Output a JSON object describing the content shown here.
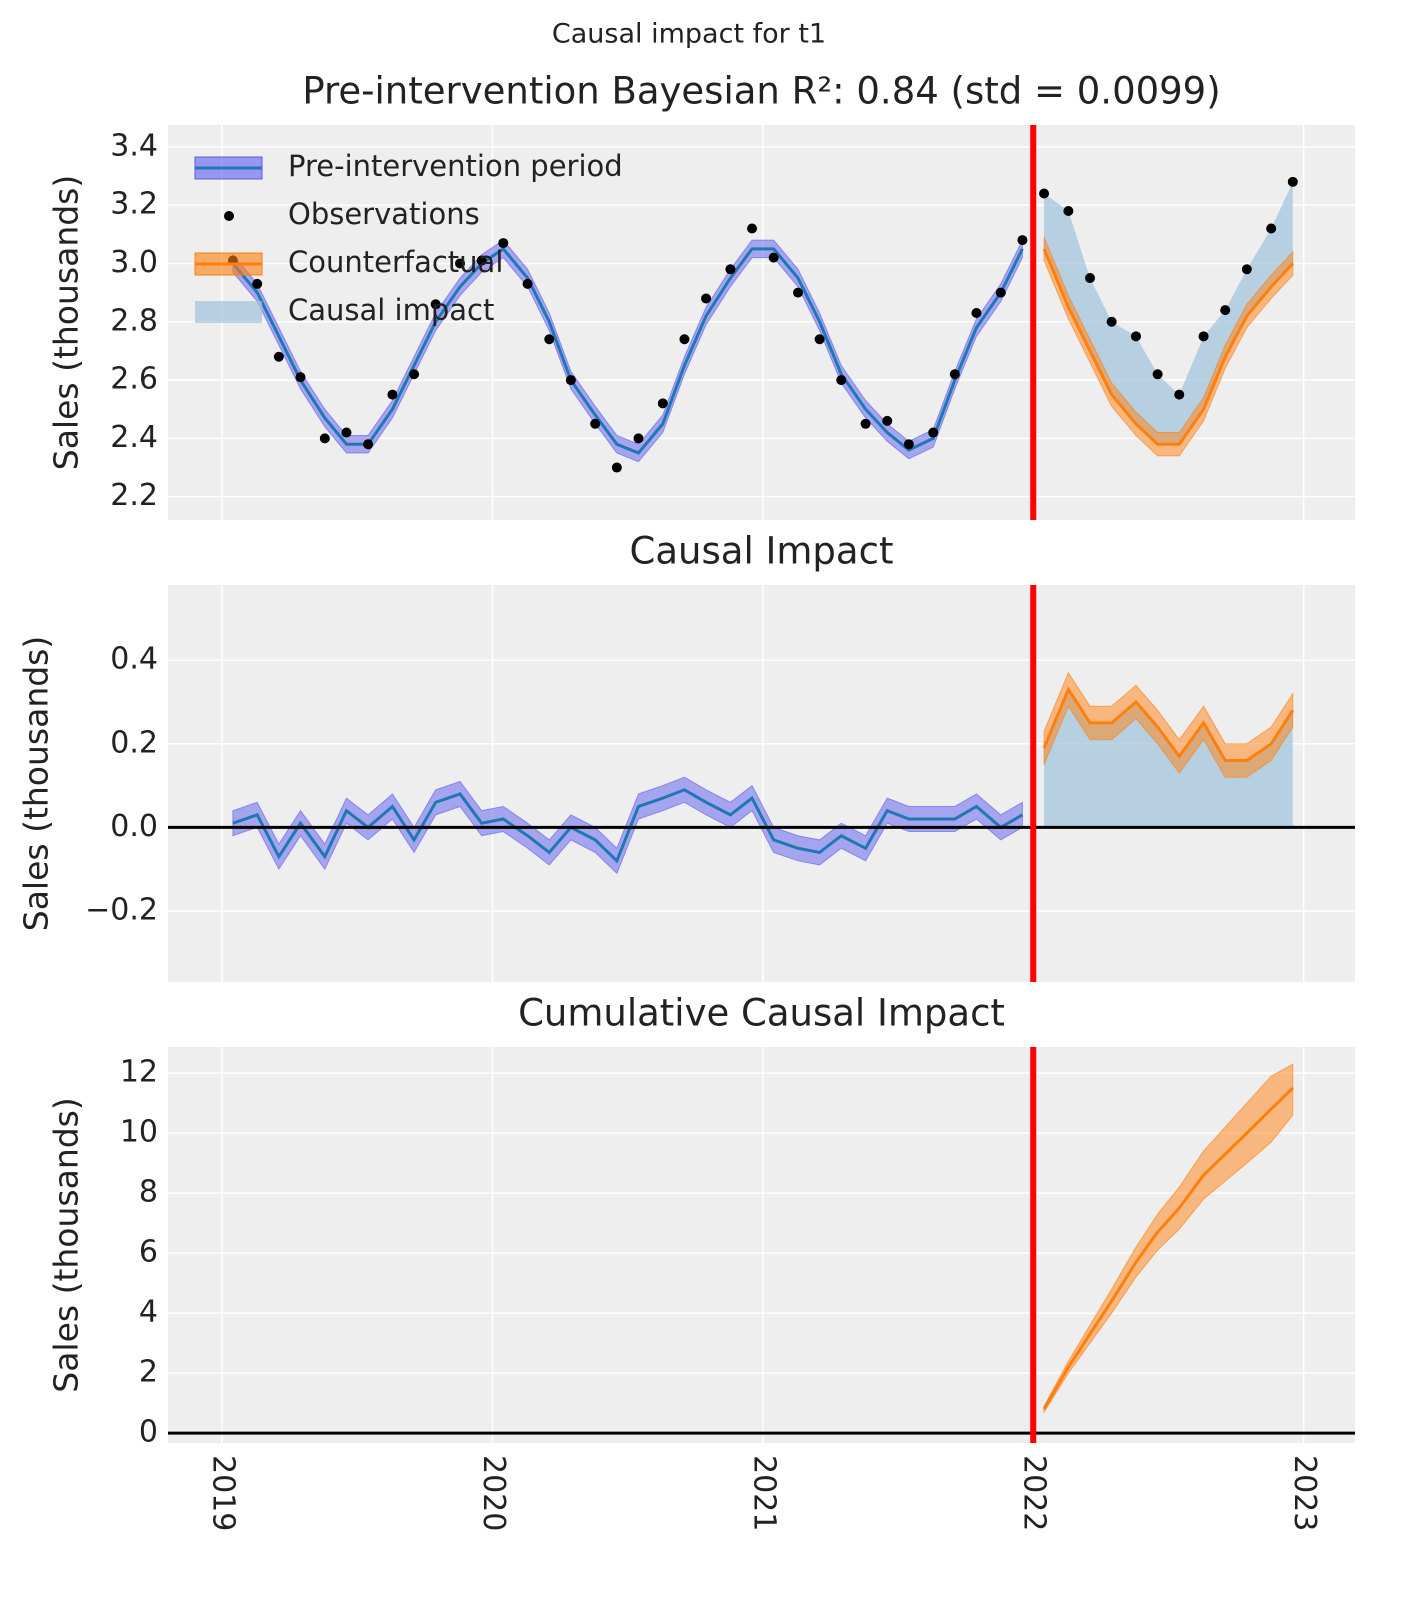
{
  "title": "Causal impact for t1",
  "chart_data": [
    {
      "type": "line",
      "title": "Pre-intervention Bayesian R²: 0.84 (std = 0.0099)",
      "ylabel": "Sales (thousands)",
      "xlim": [
        2018.8,
        2023.19
      ],
      "xticks": [
        2019,
        2020,
        2021,
        2022,
        2023
      ],
      "ylim": [
        2.12,
        3.475
      ],
      "yticks": [
        2.2,
        2.4,
        2.6,
        2.8,
        {
          "value": 3,
          "label": "3.0"
        },
        3.2,
        3.4
      ],
      "grid": true,
      "intervention": 2022,
      "legend": "upper left",
      "x": [
        2019.04,
        2019.13,
        2019.21,
        2019.29,
        2019.38,
        2019.46,
        2019.54,
        2019.63,
        2019.71,
        2019.79,
        2019.88,
        2019.96,
        2020.04,
        2020.13,
        2020.21,
        2020.29,
        2020.38,
        2020.46,
        2020.54,
        2020.63,
        2020.71,
        2020.79,
        2020.88,
        2020.96,
        2021.04,
        2021.13,
        2021.21,
        2021.29,
        2021.38,
        2021.46,
        2021.54,
        2021.63,
        2021.71,
        2021.79,
        2021.88,
        2021.96,
        2022.04,
        2022.13,
        2022.21,
        2022.29,
        2022.38,
        2022.46,
        2022.54,
        2022.63,
        2022.71,
        2022.79,
        2022.88,
        2022.96
      ],
      "series": [
        {
          "name": "Pre-intervention period",
          "kind": "line_band",
          "color": "#1f77b4",
          "band_color": "#5b5bf0",
          "values": [
            3.0,
            2.9,
            2.75,
            2.6,
            2.47,
            2.38,
            2.38,
            2.5,
            2.65,
            2.8,
            2.92,
            3.0,
            3.05,
            2.95,
            2.8,
            2.6,
            2.48,
            2.38,
            2.35,
            2.45,
            2.65,
            2.82,
            2.95,
            3.05,
            3.05,
            2.95,
            2.8,
            2.62,
            2.5,
            2.42,
            2.36,
            2.4,
            2.6,
            2.78,
            2.9,
            3.05,
            null,
            null,
            null,
            null,
            null,
            null,
            null,
            null,
            null,
            null,
            null,
            null
          ],
          "lower": [
            2.97,
            2.87,
            2.72,
            2.57,
            2.44,
            2.35,
            2.35,
            2.47,
            2.62,
            2.77,
            2.89,
            2.97,
            3.02,
            2.92,
            2.77,
            2.57,
            2.45,
            2.35,
            2.32,
            2.42,
            2.62,
            2.79,
            2.92,
            3.02,
            3.02,
            2.92,
            2.77,
            2.59,
            2.47,
            2.39,
            2.33,
            2.37,
            2.57,
            2.75,
            2.87,
            3.02,
            null,
            null,
            null,
            null,
            null,
            null,
            null,
            null,
            null,
            null,
            null,
            null
          ],
          "upper": [
            3.03,
            2.93,
            2.78,
            2.63,
            2.5,
            2.41,
            2.41,
            2.53,
            2.68,
            2.83,
            2.95,
            3.03,
            3.08,
            2.98,
            2.83,
            2.63,
            2.51,
            2.41,
            2.38,
            2.48,
            2.68,
            2.85,
            2.98,
            3.08,
            3.08,
            2.98,
            2.83,
            2.65,
            2.53,
            2.45,
            2.39,
            2.43,
            2.63,
            2.81,
            2.93,
            3.08,
            null,
            null,
            null,
            null,
            null,
            null,
            null,
            null,
            null,
            null,
            null,
            null
          ]
        },
        {
          "name": "Observations",
          "kind": "points",
          "color": "#000000",
          "values": [
            3.01,
            2.93,
            2.68,
            2.61,
            2.4,
            2.42,
            2.38,
            2.55,
            2.62,
            2.86,
            3.0,
            3.01,
            3.07,
            2.93,
            2.74,
            2.6,
            2.45,
            2.3,
            2.4,
            2.52,
            2.74,
            2.88,
            2.98,
            3.12,
            3.02,
            2.9,
            2.74,
            2.6,
            2.45,
            2.46,
            2.38,
            2.42,
            2.62,
            2.83,
            2.9,
            3.08,
            3.24,
            3.18,
            2.95,
            2.8,
            2.75,
            2.62,
            2.55,
            2.75,
            2.84,
            2.98,
            3.12,
            3.28
          ]
        },
        {
          "name": "Counterfactual",
          "kind": "line_band",
          "color": "#ff7f0e",
          "band_color": "#ff7f0e",
          "values": [
            null,
            null,
            null,
            null,
            null,
            null,
            null,
            null,
            null,
            null,
            null,
            null,
            null,
            null,
            null,
            null,
            null,
            null,
            null,
            null,
            null,
            null,
            null,
            null,
            null,
            null,
            null,
            null,
            null,
            null,
            null,
            null,
            null,
            null,
            null,
            null,
            3.05,
            2.85,
            2.7,
            2.55,
            2.45,
            2.38,
            2.38,
            2.5,
            2.68,
            2.82,
            2.92,
            3.0
          ],
          "lower": [
            null,
            null,
            null,
            null,
            null,
            null,
            null,
            null,
            null,
            null,
            null,
            null,
            null,
            null,
            null,
            null,
            null,
            null,
            null,
            null,
            null,
            null,
            null,
            null,
            null,
            null,
            null,
            null,
            null,
            null,
            null,
            null,
            null,
            null,
            null,
            null,
            3.01,
            2.81,
            2.66,
            2.51,
            2.41,
            2.34,
            2.34,
            2.46,
            2.64,
            2.78,
            2.88,
            2.96
          ],
          "upper": [
            null,
            null,
            null,
            null,
            null,
            null,
            null,
            null,
            null,
            null,
            null,
            null,
            null,
            null,
            null,
            null,
            null,
            null,
            null,
            null,
            null,
            null,
            null,
            null,
            null,
            null,
            null,
            null,
            null,
            null,
            null,
            null,
            null,
            null,
            null,
            null,
            3.09,
            2.89,
            2.74,
            2.59,
            2.49,
            2.42,
            2.42,
            2.54,
            2.72,
            2.86,
            2.96,
            3.04
          ]
        },
        {
          "name": "Causal impact",
          "kind": "fill",
          "color": "#9ec3db"
        }
      ]
    },
    {
      "type": "line",
      "title": "Causal Impact",
      "ylabel": "Sales (thousands)",
      "xlim": [
        2018.8,
        2023.19
      ],
      "xticks": [
        2019,
        2020,
        2021,
        2022,
        2023
      ],
      "ylim": [
        -0.37,
        0.58
      ],
      "yticks": [
        {
          "value": -0.2,
          "label": "−0.2"
        },
        {
          "value": 0,
          "label": "0.0"
        },
        0.2,
        0.4
      ],
      "grid": true,
      "intervention": 2022,
      "hline": 0,
      "x": [
        2019.04,
        2019.13,
        2019.21,
        2019.29,
        2019.38,
        2019.46,
        2019.54,
        2019.63,
        2019.71,
        2019.79,
        2019.88,
        2019.96,
        2020.04,
        2020.13,
        2020.21,
        2020.29,
        2020.38,
        2020.46,
        2020.54,
        2020.63,
        2020.71,
        2020.79,
        2020.88,
        2020.96,
        2021.04,
        2021.13,
        2021.21,
        2021.29,
        2021.38,
        2021.46,
        2021.54,
        2021.63,
        2021.71,
        2021.79,
        2021.88,
        2021.96,
        2022.04,
        2022.13,
        2022.21,
        2022.29,
        2022.38,
        2022.46,
        2022.54,
        2022.63,
        2022.71,
        2022.79,
        2022.88,
        2022.96
      ],
      "series": [
        {
          "kind": "fill",
          "color": "#9ec3db"
        },
        {
          "kind": "line_band",
          "color": "#1f77b4",
          "band_color": "#5b5bf0",
          "values": [
            0.01,
            0.03,
            -0.07,
            0.01,
            -0.07,
            0.04,
            0.0,
            0.05,
            -0.03,
            0.06,
            0.08,
            0.01,
            0.02,
            -0.02,
            -0.06,
            0.0,
            -0.03,
            -0.08,
            0.05,
            0.07,
            0.09,
            0.06,
            0.03,
            0.07,
            -0.03,
            -0.05,
            -0.06,
            -0.02,
            -0.05,
            0.04,
            0.02,
            0.02,
            0.02,
            0.05,
            0.0,
            0.03,
            null,
            null,
            null,
            null,
            null,
            null,
            null,
            null,
            null,
            null,
            null,
            null
          ],
          "lower": [
            -0.02,
            0.0,
            -0.1,
            -0.02,
            -0.1,
            0.01,
            -0.03,
            0.02,
            -0.06,
            0.03,
            0.05,
            -0.02,
            -0.01,
            -0.05,
            -0.09,
            -0.03,
            -0.06,
            -0.11,
            0.02,
            0.04,
            0.06,
            0.03,
            0.0,
            0.04,
            -0.06,
            -0.08,
            -0.09,
            -0.05,
            -0.08,
            0.01,
            -0.01,
            -0.01,
            -0.01,
            0.02,
            -0.03,
            0.0,
            null,
            null,
            null,
            null,
            null,
            null,
            null,
            null,
            null,
            null,
            null,
            null
          ],
          "upper": [
            0.04,
            0.06,
            -0.04,
            0.04,
            -0.04,
            0.07,
            0.03,
            0.08,
            0.0,
            0.09,
            0.11,
            0.04,
            0.05,
            0.01,
            -0.03,
            0.03,
            0.0,
            -0.05,
            0.08,
            0.1,
            0.12,
            0.09,
            0.06,
            0.1,
            0.0,
            -0.02,
            -0.03,
            0.01,
            -0.02,
            0.07,
            0.05,
            0.05,
            0.05,
            0.08,
            0.03,
            0.06,
            null,
            null,
            null,
            null,
            null,
            null,
            null,
            null,
            null,
            null,
            null,
            null
          ]
        },
        {
          "kind": "line_band",
          "color": "#ff7f0e",
          "band_color": "#ff7f0e",
          "values": [
            null,
            null,
            null,
            null,
            null,
            null,
            null,
            null,
            null,
            null,
            null,
            null,
            null,
            null,
            null,
            null,
            null,
            null,
            null,
            null,
            null,
            null,
            null,
            null,
            null,
            null,
            null,
            null,
            null,
            null,
            null,
            null,
            null,
            null,
            null,
            null,
            0.19,
            0.33,
            0.25,
            0.25,
            0.3,
            0.24,
            0.17,
            0.25,
            0.16,
            0.16,
            0.2,
            0.28
          ],
          "lower": [
            null,
            null,
            null,
            null,
            null,
            null,
            null,
            null,
            null,
            null,
            null,
            null,
            null,
            null,
            null,
            null,
            null,
            null,
            null,
            null,
            null,
            null,
            null,
            null,
            null,
            null,
            null,
            null,
            null,
            null,
            null,
            null,
            null,
            null,
            null,
            null,
            0.15,
            0.29,
            0.21,
            0.21,
            0.26,
            0.2,
            0.13,
            0.21,
            0.12,
            0.12,
            0.16,
            0.24
          ],
          "upper": [
            null,
            null,
            null,
            null,
            null,
            null,
            null,
            null,
            null,
            null,
            null,
            null,
            null,
            null,
            null,
            null,
            null,
            null,
            null,
            null,
            null,
            null,
            null,
            null,
            null,
            null,
            null,
            null,
            null,
            null,
            null,
            null,
            null,
            null,
            null,
            null,
            0.23,
            0.37,
            0.29,
            0.29,
            0.34,
            0.28,
            0.21,
            0.29,
            0.2,
            0.2,
            0.24,
            0.32
          ]
        }
      ]
    },
    {
      "type": "line",
      "title": "Cumulative Causal Impact",
      "ylabel": "Sales (thousands)",
      "xlim": [
        2018.8,
        2023.19
      ],
      "xticks": [
        2019,
        2020,
        2021,
        2022,
        2023
      ],
      "ylim": [
        -0.33,
        12.87
      ],
      "yticks": [
        0,
        2,
        4,
        6,
        8,
        10,
        12
      ],
      "grid": true,
      "intervention": 2022,
      "hline": 0,
      "show_xtick_labels": true,
      "x": [
        2022.04,
        2022.13,
        2022.21,
        2022.29,
        2022.38,
        2022.46,
        2022.54,
        2022.63,
        2022.71,
        2022.79,
        2022.88,
        2022.96
      ],
      "series": [
        {
          "kind": "line_band",
          "color": "#ff7f0e",
          "band_color": "#ff7f0e",
          "values": [
            0.8,
            2.2,
            3.3,
            4.4,
            5.7,
            6.7,
            7.5,
            8.6,
            9.3,
            10.0,
            10.8,
            11.5
          ],
          "lower": [
            0.7,
            2.0,
            3.0,
            4.0,
            5.2,
            6.1,
            6.8,
            7.8,
            8.4,
            9.0,
            9.7,
            10.6
          ],
          "upper": [
            0.9,
            2.4,
            3.6,
            4.8,
            6.2,
            7.3,
            8.2,
            9.4,
            10.2,
            11.0,
            11.9,
            12.3
          ]
        }
      ]
    }
  ]
}
